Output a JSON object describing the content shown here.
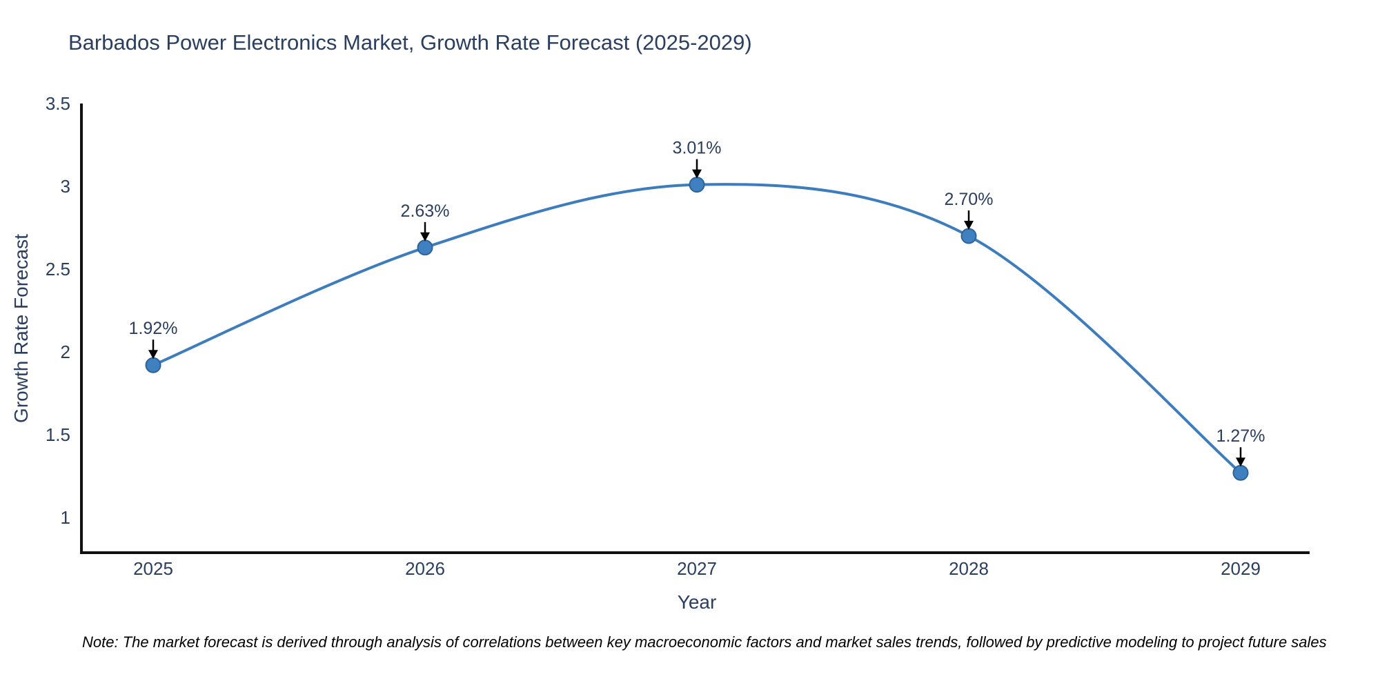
{
  "note": "Note: The market forecast is derived through analysis of correlations between key macroeconomic factors and market sales trends, followed by predictive modeling to project future sales",
  "chart_data": {
    "type": "line",
    "title": "Barbados Power Electronics Market, Growth Rate Forecast (2025-2029)",
    "xlabel": "Year",
    "ylabel": "Growth Rate Forecast",
    "categories": [
      "2025",
      "2026",
      "2027",
      "2028",
      "2029"
    ],
    "series": [
      {
        "name": "Growth Rate Forecast",
        "values": [
          1.92,
          2.63,
          3.01,
          2.7,
          1.27
        ]
      }
    ],
    "point_labels": [
      "1.92%",
      "2.63%",
      "3.01%",
      "2.70%",
      "1.27%"
    ],
    "ytick_labels": [
      "1",
      "1.5",
      "2",
      "2.5",
      "3",
      "3.5"
    ],
    "ytick_values": [
      1,
      1.5,
      2,
      2.5,
      3,
      3.5
    ],
    "ylim": [
      0.79,
      3.5
    ],
    "grid": false,
    "legend": "none",
    "line_shape": "spline",
    "annotations_have_arrows": true,
    "colors": {
      "line": "#3e7dbd",
      "marker_fill": "#3f80c0",
      "marker_edge": "#2d6399",
      "axis": "#111111",
      "text": "#2a3f5f",
      "annotation_text": "#2a3f5f",
      "annotation_arrow": "#000000",
      "note_text": "#000000",
      "background": "#ffffff"
    }
  }
}
